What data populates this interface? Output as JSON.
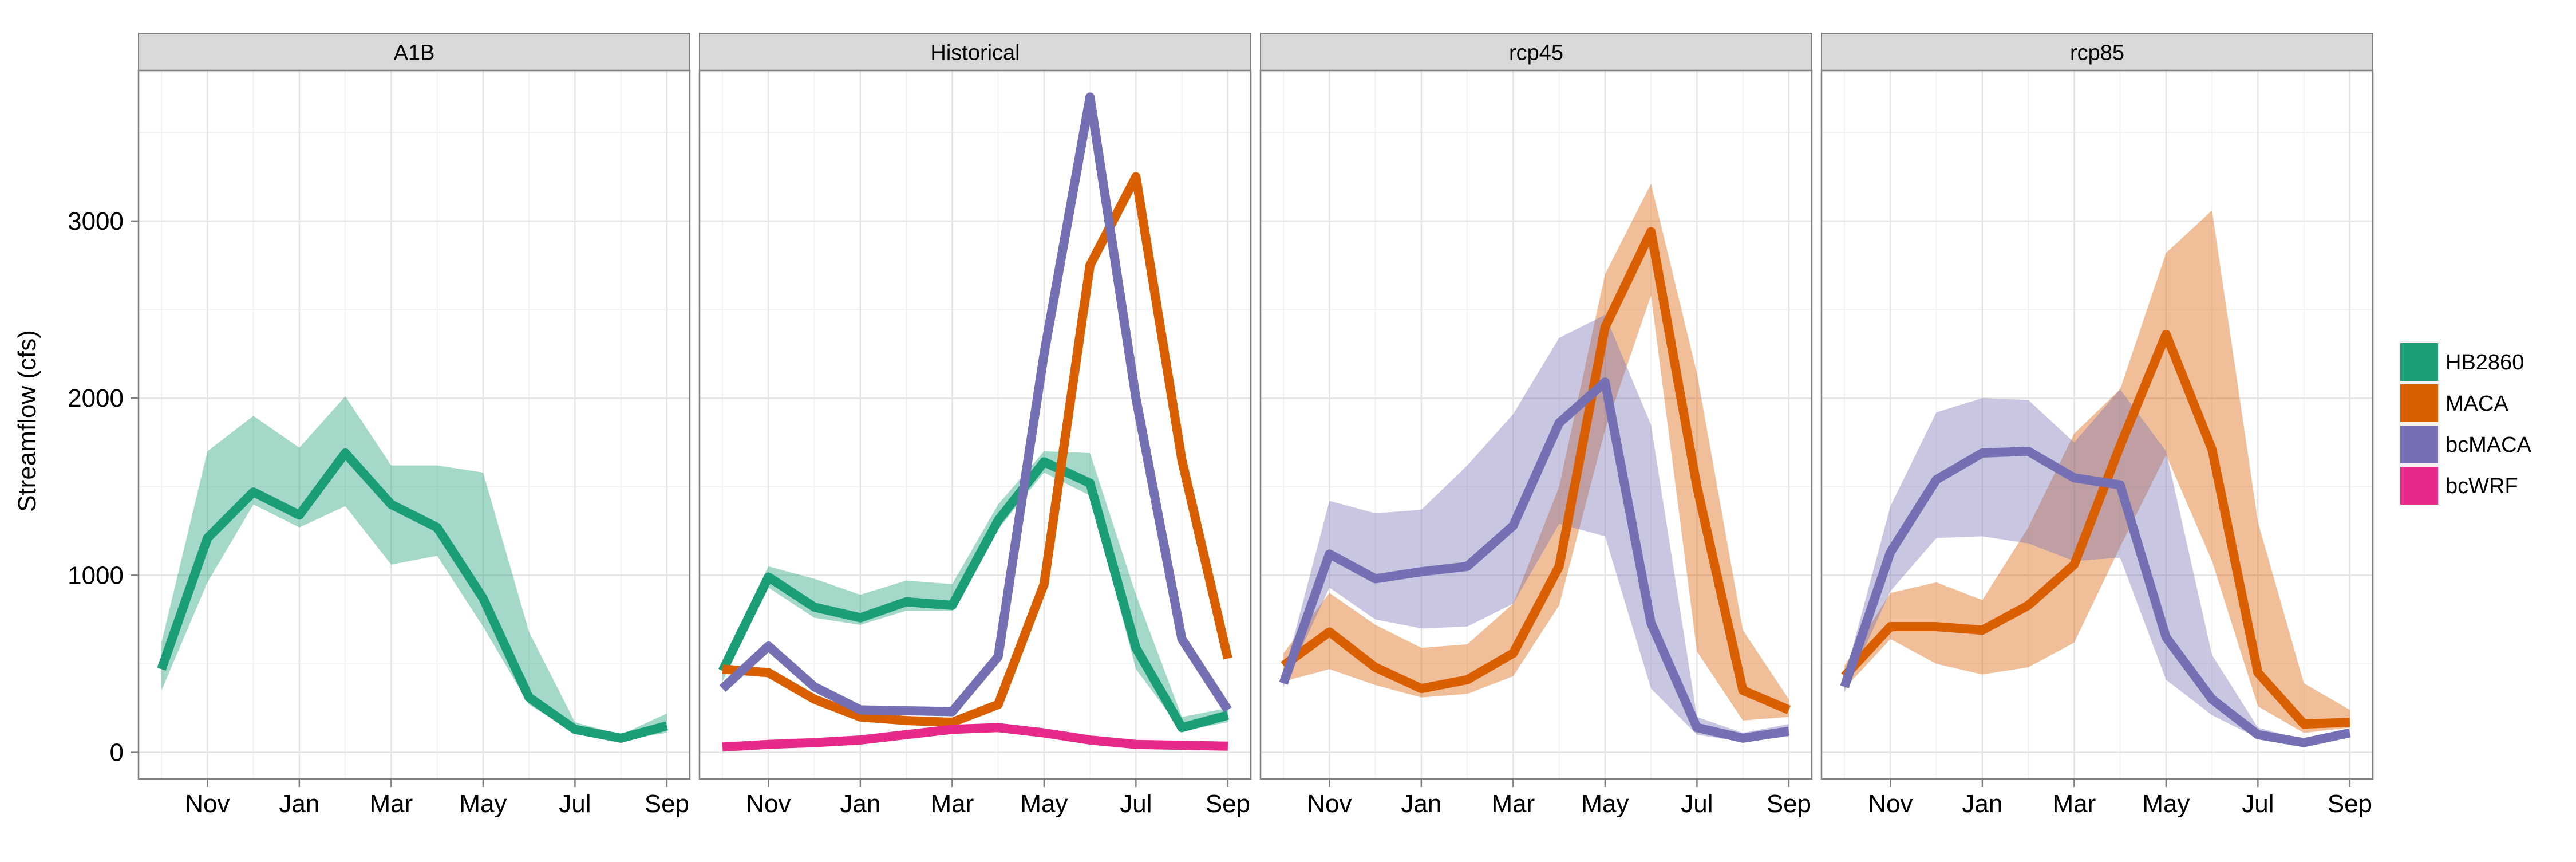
{
  "chart_data": {
    "type": "line",
    "ylabel": "Streamflow (cfs)",
    "xlabel": "",
    "x_ticks": [
      "Nov",
      "Jan",
      "Mar",
      "May",
      "Jul",
      "Sep"
    ],
    "x_tick_positions": [
      2,
      4,
      6,
      8,
      10,
      12
    ],
    "xlim": [
      0.5,
      12.5
    ],
    "ylim": [
      -150,
      3850
    ],
    "y_ticks": [
      0,
      1000,
      2000,
      3000
    ],
    "grid": true,
    "legend_position": "right",
    "legend": [
      {
        "name": "HB2860",
        "color": "#1b9e77"
      },
      {
        "name": "MACA",
        "color": "#d95f02"
      },
      {
        "name": "bcMACA",
        "color": "#7570b3"
      },
      {
        "name": "bcWRF",
        "color": "#e7298a"
      }
    ],
    "x": [
      1,
      2,
      3,
      4,
      5,
      6,
      7,
      8,
      9,
      10,
      11,
      12
    ],
    "panels": [
      {
        "title": "A1B",
        "series": [
          {
            "name": "HB2860",
            "color": "#1b9e77",
            "values": [
              470,
              1210,
              1470,
              1340,
              1690,
              1400,
              1270,
              870,
              310,
              130,
              80,
              150
            ],
            "ribbon_low": [
              350,
              960,
              1400,
              1270,
              1390,
              1060,
              1110,
              710,
              270,
              110,
              70,
              110
            ],
            "ribbon_high": [
              620,
              1700,
              1900,
              1720,
              2010,
              1620,
              1620,
              1580,
              680,
              170,
              100,
              220
            ]
          }
        ]
      },
      {
        "title": "Historical",
        "series": [
          {
            "name": "HB2860",
            "color": "#1b9e77",
            "values": [
              460,
              990,
              820,
              760,
              850,
              830,
              1310,
              1640,
              1520,
              590,
              140,
              210
            ],
            "ribbon_low": [
              400,
              930,
              760,
              720,
              800,
              800,
              1260,
              1580,
              1450,
              470,
              120,
              170
            ],
            "ribbon_high": [
              520,
              1050,
              980,
              890,
              970,
              950,
              1400,
              1700,
              1690,
              890,
              200,
              250
            ]
          },
          {
            "name": "MACA",
            "color": "#d95f02",
            "values": [
              470,
              450,
              300,
              200,
              180,
              170,
              270,
              950,
              2750,
              3250,
              1650,
              530
            ]
          },
          {
            "name": "bcMACA",
            "color": "#7570b3",
            "values": [
              360,
              600,
              370,
              240,
              235,
              230,
              540,
              2250,
              3700,
              2000,
              640,
              240
            ]
          },
          {
            "name": "bcWRF",
            "color": "#e7298a",
            "values": [
              30,
              45,
              55,
              70,
              100,
              130,
              140,
              110,
              70,
              45,
              40,
              35
            ]
          }
        ]
      },
      {
        "title": "rcp45",
        "series": [
          {
            "name": "MACA",
            "color": "#d95f02",
            "values": [
              490,
              680,
              480,
              360,
              410,
              560,
              1050,
              2400,
              2940,
              1500,
              350,
              240
            ],
            "ribbon_low": [
              400,
              470,
              380,
              310,
              330,
              430,
              830,
              1820,
              2580,
              570,
              180,
              200
            ],
            "ribbon_high": [
              560,
              900,
              720,
              590,
              610,
              840,
              1500,
              2700,
              3210,
              2140,
              690,
              300
            ]
          },
          {
            "name": "bcMACA",
            "color": "#7570b3",
            "values": [
              390,
              1120,
              980,
              1020,
              1050,
              1280,
              1860,
              2090,
              730,
              140,
              80,
              120
            ],
            "ribbon_low": [
              370,
              930,
              750,
              700,
              710,
              840,
              1290,
              1220,
              360,
              100,
              60,
              90
            ],
            "ribbon_high": [
              430,
              1420,
              1350,
              1370,
              1620,
              1910,
              2340,
              2470,
              1850,
              200,
              110,
              160
            ]
          }
        ]
      },
      {
        "title": "rcp85",
        "series": [
          {
            "name": "MACA",
            "color": "#d95f02",
            "values": [
              430,
              710,
              710,
              690,
              830,
              1060,
              1730,
              2360,
              1710,
              450,
              160,
              170
            ],
            "ribbon_low": [
              360,
              640,
              500,
              440,
              480,
              620,
              1160,
              1680,
              1080,
              260,
              110,
              140
            ],
            "ribbon_high": [
              490,
              900,
              960,
              860,
              1270,
              1800,
              2050,
              2820,
              3060,
              1300,
              390,
              240
            ]
          },
          {
            "name": "bcMACA",
            "color": "#7570b3",
            "values": [
              370,
              1130,
              1540,
              1690,
              1700,
              1550,
              1510,
              650,
              300,
              100,
              55,
              110
            ],
            "ribbon_low": [
              340,
              910,
              1210,
              1220,
              1180,
              1080,
              1100,
              410,
              210,
              80,
              40,
              90
            ],
            "ribbon_high": [
              420,
              1390,
              1920,
              2000,
              1990,
              1750,
              2050,
              1700,
              550,
              140,
              70,
              130
            ]
          }
        ]
      }
    ]
  }
}
